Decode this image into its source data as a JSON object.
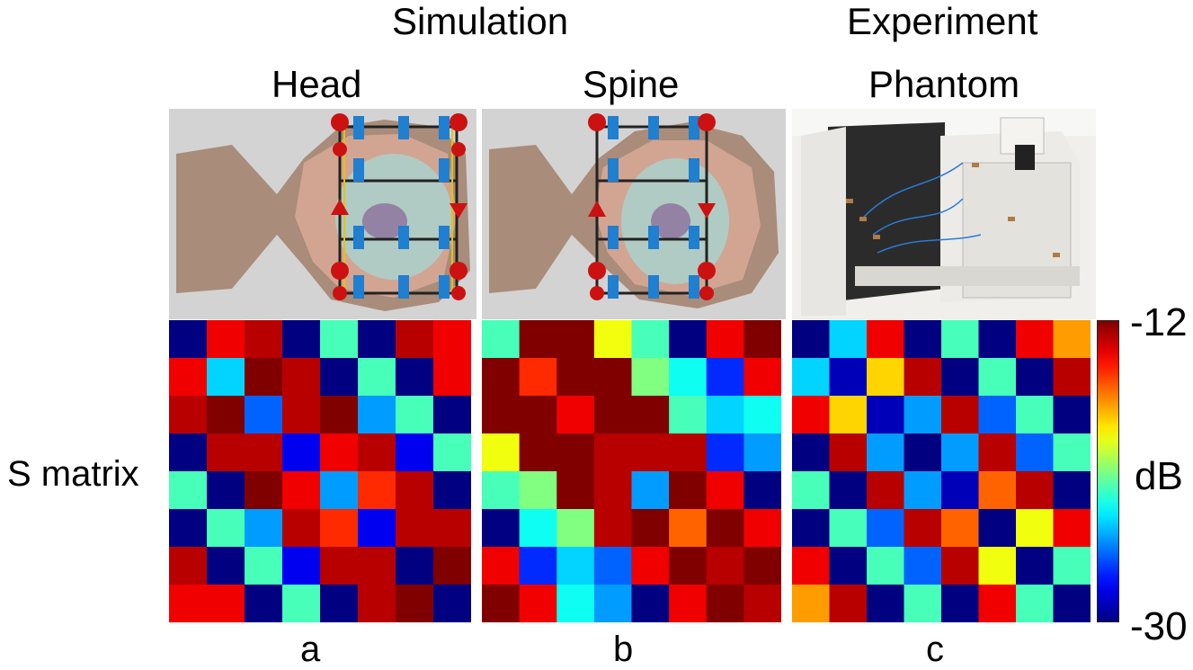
{
  "headers": {
    "simulation": "Simulation",
    "experiment": "Experiment",
    "head": "Head",
    "spine": "Spine",
    "phantom": "Phantom"
  },
  "row_label": "S matrix",
  "panel_labels": [
    "a",
    "b",
    "c"
  ],
  "colorbar": {
    "max_label": "-12",
    "min_label": "-30",
    "unit_label": "dB",
    "min": -30,
    "max": -12,
    "colormap": "jet"
  },
  "chart_data": [
    {
      "type": "heatmap",
      "panel": "a",
      "rows": 8,
      "cols": 8,
      "vmin": -30,
      "vmax": -12,
      "values": [
        [
          -30,
          -14,
          -13,
          -30,
          -22,
          -30,
          -13,
          -14
        ],
        [
          -14,
          -24,
          -12,
          -13,
          -30,
          -22,
          -30,
          -14
        ],
        [
          -13,
          -12,
          -26,
          -13,
          -12,
          -25,
          -22,
          -30
        ],
        [
          -30,
          -13,
          -13,
          -28,
          -14,
          -13,
          -28,
          -22
        ],
        [
          -22,
          -30,
          -12,
          -14,
          -25,
          -15,
          -13,
          -30
        ],
        [
          -30,
          -22,
          -25,
          -13,
          -15,
          -28,
          -13,
          -13
        ],
        [
          -13,
          -30,
          -22,
          -28,
          -13,
          -13,
          -30,
          -12
        ],
        [
          -14,
          -14,
          -30,
          -22,
          -30,
          -13,
          -12,
          -30
        ]
      ]
    },
    {
      "type": "heatmap",
      "panel": "b",
      "rows": 8,
      "cols": 8,
      "vmin": -30,
      "vmax": -12,
      "values": [
        [
          -22,
          -12,
          -12,
          -19,
          -22,
          -30,
          -14,
          -12
        ],
        [
          -12,
          -15,
          -12,
          -12,
          -21,
          -23,
          -27,
          -14
        ],
        [
          -12,
          -12,
          -14,
          -12,
          -12,
          -22,
          -24,
          -23
        ],
        [
          -19,
          -12,
          -12,
          -13,
          -13,
          -13,
          -27,
          -25
        ],
        [
          -22,
          -21,
          -12,
          -13,
          -25,
          -12,
          -14,
          -30
        ],
        [
          -30,
          -23,
          -21,
          -13,
          -12,
          -16,
          -12,
          -14
        ],
        [
          -14,
          -27,
          -24,
          -26,
          -14,
          -12,
          -13,
          -12
        ],
        [
          -12,
          -14,
          -23,
          -25,
          -30,
          -14,
          -12,
          -13
        ]
      ]
    },
    {
      "type": "heatmap",
      "panel": "c",
      "rows": 8,
      "cols": 8,
      "vmin": -30,
      "vmax": -12,
      "values": [
        [
          -30,
          -24,
          -14,
          -30,
          -22,
          -30,
          -14,
          -17
        ],
        [
          -24,
          -29,
          -18,
          -13,
          -30,
          -22,
          -30,
          -13
        ],
        [
          -14,
          -18,
          -29,
          -25,
          -13,
          -26,
          -22,
          -30
        ],
        [
          -30,
          -13,
          -25,
          -30,
          -25,
          -13,
          -26,
          -22
        ],
        [
          -22,
          -30,
          -13,
          -25,
          -29,
          -16,
          -13,
          -30
        ],
        [
          -30,
          -22,
          -26,
          -13,
          -16,
          -30,
          -19,
          -14
        ],
        [
          -14,
          -30,
          -22,
          -26,
          -13,
          -19,
          -30,
          -22
        ],
        [
          -17,
          -13,
          -30,
          -22,
          -30,
          -14,
          -22,
          -30
        ]
      ]
    }
  ]
}
